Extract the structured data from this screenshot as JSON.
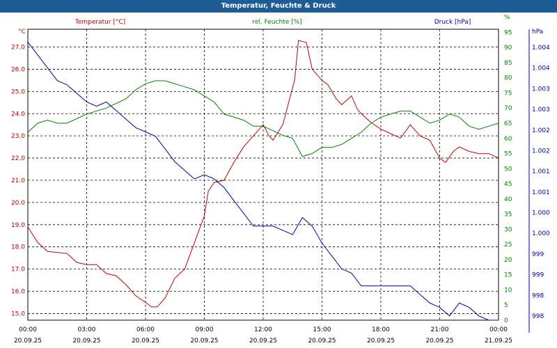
{
  "chart_data": {
    "type": "line",
    "title": "Temperatur, Feuchte & Druck",
    "x_ticks": [
      {
        "time": "00:00",
        "date": "20.09.25"
      },
      {
        "time": "03:00",
        "date": "20.09.25"
      },
      {
        "time": "06:00",
        "date": "20.09.25"
      },
      {
        "time": "09:00",
        "date": "20.09.25"
      },
      {
        "time": "12:00",
        "date": "20.09.25"
      },
      {
        "time": "15:00",
        "date": "20.09.25"
      },
      {
        "time": "18:00",
        "date": "20.09.25"
      },
      {
        "time": "21:00",
        "date": "20.09.25"
      },
      {
        "time": "00:00",
        "date": "21.09.25"
      }
    ],
    "x_range_hours": [
      0,
      24
    ],
    "axes": {
      "temperature": {
        "unit": "°C",
        "legend": "Temperatur [°C]",
        "color": "#c00000",
        "ylim": [
          14.7,
          27.8
        ],
        "ticks": [
          "15.0",
          "16.0",
          "17.0",
          "18.0",
          "19.0",
          "20.0",
          "21.0",
          "22.0",
          "23.0",
          "24.0",
          "25.0",
          "26.0",
          "27.0"
        ]
      },
      "humidity": {
        "unit": "%",
        "legend": "rel. Feuchte [%]",
        "color": "#008000",
        "ylim": [
          0,
          96
        ],
        "ticks": [
          "0",
          "5",
          "10",
          "15",
          "20",
          "25",
          "30",
          "35",
          "40",
          "45",
          "50",
          "55",
          "60",
          "65",
          "70",
          "75",
          "80",
          "85",
          "90",
          "95",
          "%"
        ]
      },
      "pressure": {
        "unit": "hPa",
        "legend": "Druck [hPa]",
        "color": "#0000a0",
        "ylim": [
          997.7,
          1004.5
        ],
        "ticks": [
          "998",
          "998",
          "999",
          "999",
          "1.000",
          "1.000",
          "1.001",
          "1.001",
          "1.002",
          "1.002",
          "1.003",
          "1.003",
          "1.004",
          "1.004"
        ]
      }
    },
    "series": [
      {
        "name": "Temperatur",
        "axis": "temperature",
        "x": [
          0,
          0.5,
          1,
          2,
          2.5,
          3,
          3.5,
          4,
          4.5,
          5,
          5.5,
          6,
          6.3,
          6.6,
          7,
          7.5,
          8,
          8.5,
          9,
          9.2,
          9.5,
          10,
          10.5,
          11,
          11.5,
          12,
          12.3,
          12.5,
          13,
          13.3,
          13.6,
          13.8,
          14.2,
          14.5,
          15,
          15.3,
          15.7,
          16,
          16.5,
          16.8,
          17,
          17.5,
          18,
          18.5,
          19,
          19.5,
          20,
          20.5,
          21,
          21.3,
          21.7,
          22,
          22.5,
          23,
          23.5,
          24
        ],
        "values": [
          18.9,
          18.2,
          17.8,
          17.7,
          17.3,
          17.2,
          17.2,
          16.8,
          16.7,
          16.3,
          15.8,
          15.5,
          15.3,
          15.3,
          15.7,
          16.6,
          17.0,
          18.2,
          19.4,
          20.5,
          20.9,
          21.0,
          21.8,
          22.5,
          23.0,
          23.5,
          23.0,
          22.8,
          23.5,
          24.5,
          25.5,
          27.3,
          27.2,
          26.0,
          25.5,
          25.3,
          24.7,
          24.4,
          24.8,
          24.2,
          24.0,
          23.6,
          23.3,
          23.1,
          22.9,
          23.5,
          23.0,
          22.8,
          22.0,
          21.8,
          22.3,
          22.5,
          22.3,
          22.2,
          22.2,
          22.0
        ]
      },
      {
        "name": "rel. Feuchte",
        "axis": "humidity",
        "x": [
          0,
          0.5,
          1,
          1.5,
          2,
          3,
          4,
          5,
          5.5,
          6,
          6.5,
          7,
          7.5,
          8,
          8.5,
          9,
          9.5,
          10,
          11,
          11.5,
          12,
          13,
          13.5,
          14,
          14.5,
          15,
          15.5,
          16,
          16.5,
          17,
          17.5,
          18,
          18.5,
          19,
          19.5,
          20,
          20.5,
          21,
          21.5,
          22,
          22.5,
          23,
          23.5,
          24
        ],
        "values": [
          62,
          65,
          66,
          65,
          65,
          68,
          70,
          73,
          76,
          78,
          79,
          79,
          78,
          77,
          76,
          74,
          72,
          68,
          66,
          64,
          64,
          61,
          60,
          54,
          55,
          57,
          57,
          58,
          60,
          62,
          65,
          67,
          68,
          69,
          69,
          67,
          65,
          66,
          68,
          67,
          64,
          63,
          64,
          65
        ]
      },
      {
        "name": "Druck",
        "axis": "pressure",
        "x": [
          0,
          0.5,
          1,
          1.5,
          2,
          2.5,
          3,
          3.5,
          4,
          4.5,
          5,
          5.5,
          6,
          6.5,
          7,
          7.5,
          8,
          8.5,
          9,
          9.5,
          10,
          10.5,
          11,
          11.5,
          12,
          12.5,
          13,
          13.5,
          14,
          14.5,
          15,
          15.5,
          16,
          16.5,
          17,
          17.5,
          18,
          18.5,
          19,
          19.5,
          20,
          20.5,
          21,
          21.5,
          22,
          22.5,
          23,
          23.5,
          24
        ],
        "values": [
          1004.2,
          1003.9,
          1003.6,
          1003.3,
          1003.2,
          1003.0,
          1002.8,
          1002.7,
          1002.8,
          1002.6,
          1002.4,
          1002.2,
          1002.1,
          1002.0,
          1001.7,
          1001.4,
          1001.2,
          1001.0,
          1001.1,
          1001.0,
          1000.8,
          1000.5,
          1000.2,
          999.9,
          999.9,
          999.9,
          999.8,
          999.7,
          1000.1,
          999.9,
          999.5,
          999.2,
          998.9,
          998.8,
          998.5,
          998.5,
          998.5,
          998.5,
          998.5,
          998.5,
          998.3,
          998.1,
          998.0,
          997.8,
          998.1,
          998.0,
          997.8,
          997.7,
          997.7
        ]
      }
    ]
  }
}
